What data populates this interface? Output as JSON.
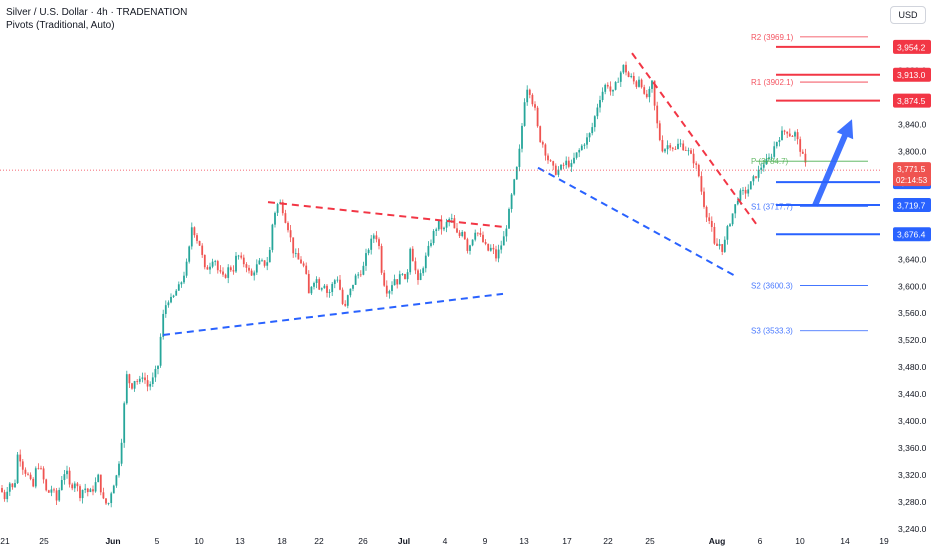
{
  "header": {
    "title": "Silver / U.S. Dollar · 4h · TRADENATION",
    "indicator": "Pivots (Traditional, Auto)",
    "currency_button": "USD"
  },
  "colors": {
    "up": "#26a69a",
    "down": "#ef5350",
    "wick": "#131722",
    "red_line": "#f23645",
    "blue_line": "#2962ff",
    "green_line": "#4caf50",
    "pivot_red": "#f23645",
    "pivot_blue": "#2962ff"
  },
  "chart_data": {
    "type": "candlestick",
    "y_axis": {
      "min": 3240,
      "max": 4000,
      "ticks": [
        "3,240.0",
        "3,280.0",
        "3,320.0",
        "3,360.0",
        "3,400.0",
        "3,440.0",
        "3,480.0",
        "3,520.0",
        "3,560.0",
        "3,600.0",
        "3,640.0",
        "3,680.0",
        "3,720.0",
        "3,760.0",
        "3,800.0",
        "3,840.0",
        "3,880.0",
        "3,920.0",
        "3,960.0"
      ]
    },
    "x_axis": {
      "ticks": [
        "21",
        "25",
        "Jun",
        "5",
        "10",
        "13",
        "18",
        "22",
        "26",
        "Jul",
        "4",
        "9",
        "13",
        "17",
        "22",
        "25",
        "Aug",
        "6",
        "10",
        "14",
        "19"
      ],
      "bold_ticks": [
        "Jun",
        "Jul",
        "Aug"
      ]
    },
    "path_points": [
      [
        0,
        3300
      ],
      [
        5,
        3285
      ],
      [
        9,
        3310
      ],
      [
        14,
        3295
      ],
      [
        18,
        3355
      ],
      [
        23,
        3330
      ],
      [
        28,
        3318
      ],
      [
        33,
        3300
      ],
      [
        37,
        3338
      ],
      [
        42,
        3322
      ],
      [
        47,
        3290
      ],
      [
        52,
        3300
      ],
      [
        57,
        3280
      ],
      [
        61,
        3312
      ],
      [
        66,
        3328
      ],
      [
        70,
        3300
      ],
      [
        75,
        3310
      ],
      [
        80,
        3290
      ],
      [
        84,
        3302
      ],
      [
        89,
        3292
      ],
      [
        94,
        3300
      ],
      [
        98,
        3318
      ],
      [
        103,
        3282
      ],
      [
        108,
        3274
      ],
      [
        112,
        3300
      ],
      [
        117,
        3320
      ],
      [
        121,
        3360
      ],
      [
        124,
        3420
      ],
      [
        127,
        3470
      ],
      [
        131,
        3448
      ],
      [
        135,
        3462
      ],
      [
        139,
        3455
      ],
      [
        143,
        3470
      ],
      [
        147,
        3450
      ],
      [
        152,
        3458
      ],
      [
        158,
        3482
      ],
      [
        161,
        3530
      ],
      [
        164,
        3565
      ],
      [
        168,
        3580
      ],
      [
        172,
        3578
      ],
      [
        176,
        3592
      ],
      [
        180,
        3600
      ],
      [
        185,
        3622
      ],
      [
        188,
        3640
      ],
      [
        192,
        3690
      ],
      [
        196,
        3672
      ],
      [
        200,
        3660
      ],
      [
        205,
        3622
      ],
      [
        210,
        3632
      ],
      [
        214,
        3645
      ],
      [
        218,
        3622
      ],
      [
        224,
        3610
      ],
      [
        229,
        3628
      ],
      [
        233,
        3622
      ],
      [
        237,
        3648
      ],
      [
        242,
        3635
      ],
      [
        246,
        3632
      ],
      [
        251,
        3612
      ],
      [
        255,
        3626
      ],
      [
        260,
        3635
      ],
      [
        265,
        3632
      ],
      [
        269,
        3640
      ],
      [
        273,
        3700
      ],
      [
        277,
        3720
      ],
      [
        281,
        3723
      ],
      [
        285,
        3700
      ],
      [
        289,
        3682
      ],
      [
        293,
        3652
      ],
      [
        297,
        3640
      ],
      [
        301,
        3635
      ],
      [
        305,
        3625
      ],
      [
        309,
        3585
      ],
      [
        312,
        3605
      ],
      [
        316,
        3612
      ],
      [
        320,
        3595
      ],
      [
        324,
        3606
      ],
      [
        328,
        3585
      ],
      [
        333,
        3604
      ],
      [
        337,
        3614
      ],
      [
        341,
        3588
      ],
      [
        344,
        3560
      ],
      [
        348,
        3585
      ],
      [
        351,
        3595
      ],
      [
        355,
        3612
      ],
      [
        359,
        3618
      ],
      [
        363,
        3625
      ],
      [
        367,
        3650
      ],
      [
        371,
        3665
      ],
      [
        375,
        3680
      ],
      [
        379,
        3658
      ],
      [
        382,
        3618
      ],
      [
        386,
        3593
      ],
      [
        390,
        3595
      ],
      [
        394,
        3612
      ],
      [
        398,
        3604
      ],
      [
        402,
        3625
      ],
      [
        406,
        3598
      ],
      [
        410,
        3660
      ],
      [
        414,
        3632
      ],
      [
        418,
        3604
      ],
      [
        422,
        3624
      ],
      [
        426,
        3643
      ],
      [
        430,
        3662
      ],
      [
        434,
        3680
      ],
      [
        439,
        3694
      ],
      [
        443,
        3680
      ],
      [
        447,
        3694
      ],
      [
        451,
        3702
      ],
      [
        455,
        3680
      ],
      [
        459,
        3672
      ],
      [
        463,
        3686
      ],
      [
        467,
        3654
      ],
      [
        471,
        3664
      ],
      [
        475,
        3683
      ],
      [
        479,
        3676
      ],
      [
        484,
        3662
      ],
      [
        488,
        3652
      ],
      [
        492,
        3656
      ],
      [
        496,
        3642
      ],
      [
        500,
        3656
      ],
      [
        504,
        3672
      ],
      [
        508,
        3700
      ],
      [
        512,
        3736
      ],
      [
        515,
        3760
      ],
      [
        518,
        3782
      ],
      [
        521,
        3820
      ],
      [
        524,
        3872
      ],
      [
        528,
        3900
      ],
      [
        531,
        3880
      ],
      [
        535,
        3860
      ],
      [
        539,
        3820
      ],
      [
        543,
        3810
      ],
      [
        547,
        3790
      ],
      [
        551,
        3780
      ],
      [
        555,
        3768
      ],
      [
        559,
        3772
      ],
      [
        563,
        3778
      ],
      [
        567,
        3784
      ],
      [
        571,
        3776
      ],
      [
        575,
        3792
      ],
      [
        579,
        3800
      ],
      [
        583,
        3810
      ],
      [
        587,
        3818
      ],
      [
        591,
        3828
      ],
      [
        595,
        3852
      ],
      [
        599,
        3876
      ],
      [
        603,
        3890
      ],
      [
        607,
        3902
      ],
      [
        612,
        3882
      ],
      [
        616,
        3899
      ],
      [
        620,
        3914
      ],
      [
        624,
        3927
      ],
      [
        628,
        3910
      ],
      [
        632,
        3908
      ],
      [
        636,
        3896
      ],
      [
        640,
        3912
      ],
      [
        644,
        3880
      ],
      [
        648,
        3880
      ],
      [
        652,
        3900
      ],
      [
        655,
        3860
      ],
      [
        659,
        3822
      ],
      [
        663,
        3800
      ],
      [
        667,
        3808
      ],
      [
        671,
        3810
      ],
      [
        675,
        3800
      ],
      [
        679,
        3812
      ],
      [
        683,
        3806
      ],
      [
        687,
        3802
      ],
      [
        691,
        3792
      ],
      [
        695,
        3782
      ],
      [
        699,
        3762
      ],
      [
        703,
        3726
      ],
      [
        707,
        3704
      ],
      [
        711,
        3690
      ],
      [
        715,
        3654
      ],
      [
        719,
        3664
      ],
      [
        723,
        3652
      ],
      [
        727,
        3682
      ],
      [
        731,
        3700
      ],
      [
        735,
        3718
      ],
      [
        739,
        3736
      ],
      [
        743,
        3738
      ],
      [
        747,
        3740
      ],
      [
        751,
        3752
      ],
      [
        755,
        3762
      ],
      [
        759,
        3770
      ],
      [
        763,
        3782
      ],
      [
        767,
        3784
      ],
      [
        771,
        3792
      ],
      [
        775,
        3810
      ],
      [
        779,
        3820
      ],
      [
        783,
        3828
      ],
      [
        787,
        3830
      ],
      [
        791,
        3822
      ],
      [
        795,
        3826
      ],
      [
        799,
        3808
      ],
      [
        803,
        3790
      ],
      [
        807,
        3772
      ]
    ],
    "red_trendlines": [
      {
        "from": [
          268,
          3724
        ],
        "to": [
          505,
          3687
        ]
      },
      {
        "from": [
          632,
          3945
        ],
        "to": [
          757,
          3690
        ]
      }
    ],
    "blue_trendlines": [
      {
        "from": [
          163,
          3527
        ],
        "to": [
          503,
          3588
        ]
      },
      {
        "from": [
          538,
          3775
        ],
        "to": [
          736,
          3614
        ]
      }
    ],
    "price_levels": [
      {
        "name": "R2",
        "value": 3969.1,
        "label": "R2 (3969.1)",
        "color": "red"
      },
      {
        "name": "R1",
        "value": 3902.1,
        "label": "R1 (3902.1)",
        "color": "red"
      },
      {
        "name": "P",
        "value": 3784.7,
        "label": "P (3784.7)",
        "color": "green"
      },
      {
        "name": "S1",
        "value": 3717.7,
        "label": "S1 (3717.7)",
        "color": "blue"
      },
      {
        "name": "S2",
        "value": 3600.3,
        "label": "S2 (3600.3)",
        "color": "blue"
      },
      {
        "name": "S3",
        "value": 3533.3,
        "label": "S3 (3533.3)",
        "color": "blue"
      }
    ],
    "marked_levels": [
      {
        "value": 3954.2,
        "label": "3,954.2",
        "color": "red"
      },
      {
        "value": 3913.0,
        "label": "3,913.0",
        "color": "red"
      },
      {
        "value": 3874.5,
        "label": "3,874.5",
        "color": "red"
      },
      {
        "value": 3753.7,
        "label": "3,753.7",
        "color": "blue"
      },
      {
        "value": 3719.7,
        "label": "3,719.7",
        "color": "blue"
      },
      {
        "value": 3676.4,
        "label": "3,676.4",
        "color": "blue"
      }
    ],
    "current_price": {
      "value": 3771.5,
      "label": "3,771.5",
      "countdown": "02:14:53"
    },
    "projection_arrow": {
      "from": [
        815,
        3719
      ],
      "to": [
        852,
        3847
      ]
    }
  }
}
